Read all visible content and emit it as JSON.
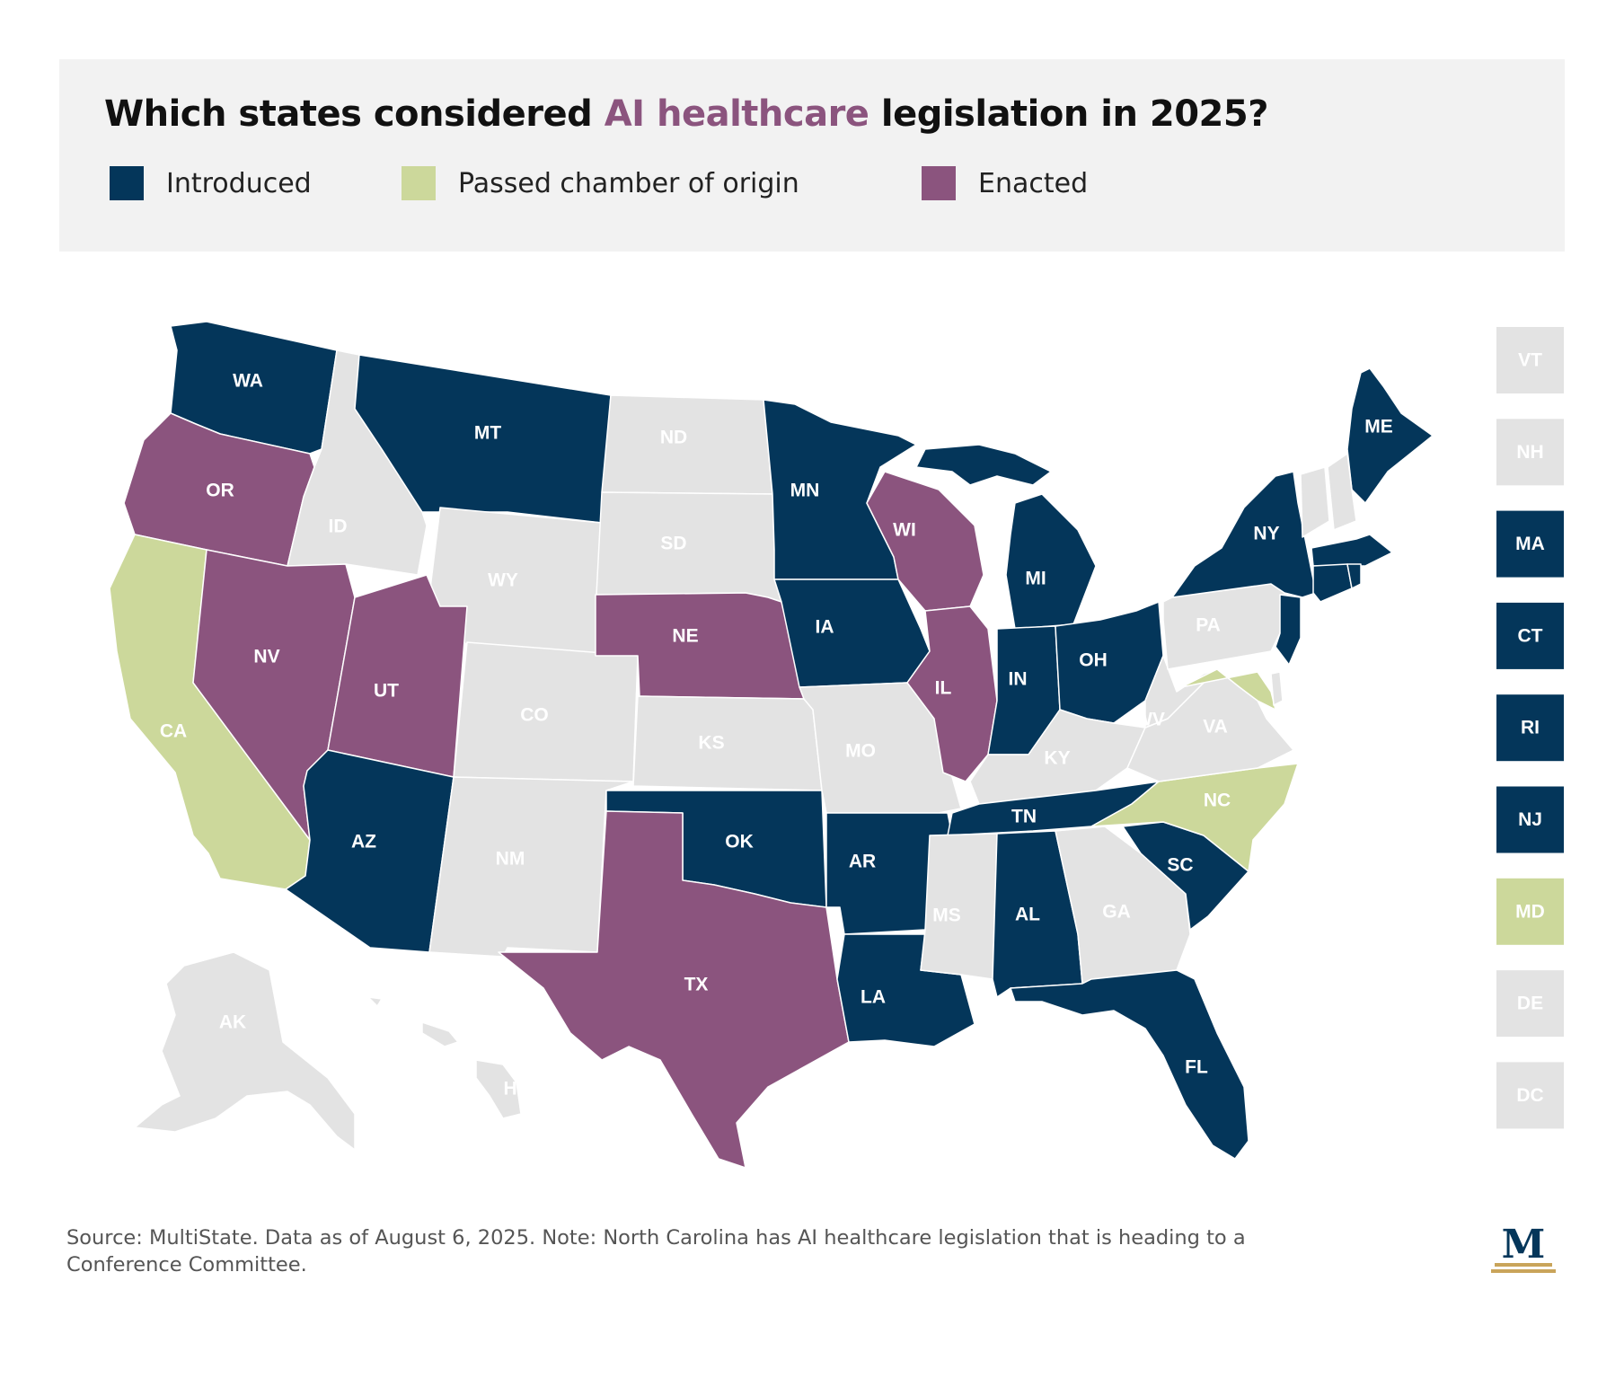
{
  "title": {
    "before": "Which states considered ",
    "highlight": "AI healthcare",
    "after": " legislation in 2025?"
  },
  "legend": [
    {
      "label": "Introduced",
      "status": "introduced"
    },
    {
      "label": "Passed chamber of origin",
      "status": "passed"
    },
    {
      "label": "Enacted",
      "status": "enacted"
    }
  ],
  "colors": {
    "introduced": "#04365a",
    "passed": "#ccd89b",
    "enacted": "#8b547e",
    "none": "#e3e3e3",
    "label_on_dark": "#ffffff",
    "label_on_light": "#ffffff",
    "accent": "#8b547e",
    "logo_gold": "#c9a45a",
    "logo_navy": "#04365a"
  },
  "states": [
    {
      "abbr": "WA",
      "status": "introduced"
    },
    {
      "abbr": "OR",
      "status": "enacted"
    },
    {
      "abbr": "CA",
      "status": "passed"
    },
    {
      "abbr": "ID",
      "status": "none"
    },
    {
      "abbr": "NV",
      "status": "enacted"
    },
    {
      "abbr": "MT",
      "status": "introduced"
    },
    {
      "abbr": "WY",
      "status": "none"
    },
    {
      "abbr": "UT",
      "status": "enacted"
    },
    {
      "abbr": "AZ",
      "status": "introduced"
    },
    {
      "abbr": "CO",
      "status": "none"
    },
    {
      "abbr": "NM",
      "status": "none"
    },
    {
      "abbr": "ND",
      "status": "none"
    },
    {
      "abbr": "SD",
      "status": "none"
    },
    {
      "abbr": "NE",
      "status": "enacted"
    },
    {
      "abbr": "KS",
      "status": "none"
    },
    {
      "abbr": "OK",
      "status": "introduced"
    },
    {
      "abbr": "TX",
      "status": "enacted"
    },
    {
      "abbr": "MN",
      "status": "introduced"
    },
    {
      "abbr": "IA",
      "status": "introduced"
    },
    {
      "abbr": "MO",
      "status": "none"
    },
    {
      "abbr": "AR",
      "status": "introduced"
    },
    {
      "abbr": "LA",
      "status": "introduced"
    },
    {
      "abbr": "WI",
      "status": "enacted"
    },
    {
      "abbr": "IL",
      "status": "enacted"
    },
    {
      "abbr": "MI",
      "status": "introduced"
    },
    {
      "abbr": "IN",
      "status": "introduced"
    },
    {
      "abbr": "OH",
      "status": "introduced"
    },
    {
      "abbr": "KY",
      "status": "none"
    },
    {
      "abbr": "TN",
      "status": "introduced"
    },
    {
      "abbr": "MS",
      "status": "none"
    },
    {
      "abbr": "AL",
      "status": "introduced"
    },
    {
      "abbr": "GA",
      "status": "none"
    },
    {
      "abbr": "FL",
      "status": "introduced"
    },
    {
      "abbr": "SC",
      "status": "introduced"
    },
    {
      "abbr": "NC",
      "status": "passed"
    },
    {
      "abbr": "VA",
      "status": "none"
    },
    {
      "abbr": "WV",
      "status": "none"
    },
    {
      "abbr": "PA",
      "status": "none"
    },
    {
      "abbr": "NY",
      "status": "introduced"
    },
    {
      "abbr": "ME",
      "status": "introduced"
    },
    {
      "abbr": "AK",
      "status": "none"
    },
    {
      "abbr": "HI",
      "status": "none"
    }
  ],
  "small_states": [
    {
      "abbr": "VT",
      "status": "none"
    },
    {
      "abbr": "NH",
      "status": "none"
    },
    {
      "abbr": "MA",
      "status": "introduced"
    },
    {
      "abbr": "CT",
      "status": "introduced"
    },
    {
      "abbr": "RI",
      "status": "introduced"
    },
    {
      "abbr": "NJ",
      "status": "introduced"
    },
    {
      "abbr": "MD",
      "status": "passed"
    },
    {
      "abbr": "DE",
      "status": "none"
    },
    {
      "abbr": "DC",
      "status": "none"
    }
  ],
  "footnote": "Source: MultiState. Data as of August 6, 2025.  Note: North Carolina has AI healthcare legislation that is heading to a Conference Committee.",
  "logo_letter": "M"
}
